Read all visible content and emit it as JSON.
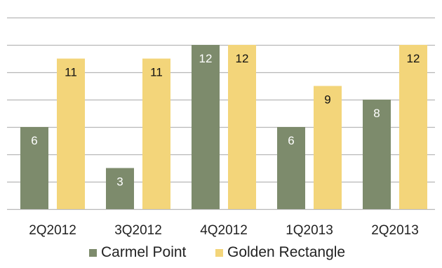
{
  "chart_data": {
    "type": "bar",
    "categories": [
      "2Q2012",
      "3Q2012",
      "4Q2012",
      "1Q2013",
      "2Q2013"
    ],
    "series": [
      {
        "name": "Carmel Point",
        "color": "#7d8b6c",
        "values": [
          6,
          3,
          12,
          6,
          8
        ]
      },
      {
        "name": "Golden Rectangle",
        "color": "#f3d57a",
        "values": [
          11,
          11,
          12,
          9,
          12
        ]
      }
    ],
    "ylim": [
      0,
      14
    ],
    "ytick_step": 2,
    "grid": true,
    "gridline_color": "#b7b7b7",
    "data_labels": true,
    "legend_position": "bottom"
  }
}
